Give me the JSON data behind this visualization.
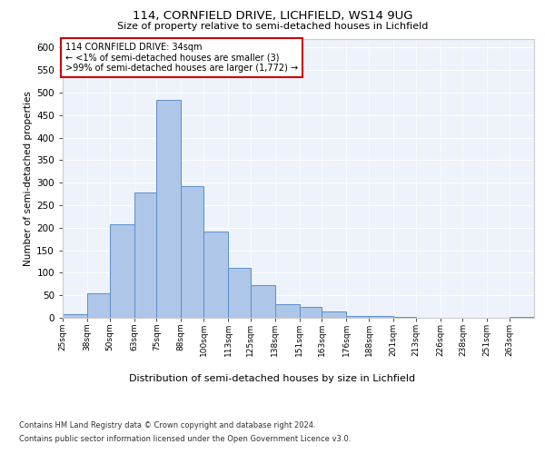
{
  "title1": "114, CORNFIELD DRIVE, LICHFIELD, WS14 9UG",
  "title2": "Size of property relative to semi-detached houses in Lichfield",
  "xlabel": "Distribution of semi-detached houses by size in Lichfield",
  "ylabel": "Number of semi-detached properties",
  "footnote1": "Contains HM Land Registry data © Crown copyright and database right 2024.",
  "footnote2": "Contains public sector information licensed under the Open Government Licence v3.0.",
  "annotation_title": "114 CORNFIELD DRIVE: 34sqm",
  "annotation_line1": "← <1% of semi-detached houses are smaller (3)",
  "annotation_line2": ">99% of semi-detached houses are larger (1,772) →",
  "bar_edges": [
    25,
    38,
    50,
    63,
    75,
    88,
    100,
    113,
    125,
    138,
    151,
    163,
    176,
    188,
    201,
    213,
    226,
    238,
    251,
    263,
    276
  ],
  "bar_heights": [
    8,
    55,
    207,
    278,
    483,
    293,
    192,
    110,
    73,
    30,
    25,
    15,
    5,
    4,
    3,
    0,
    0,
    0,
    0,
    3
  ],
  "bar_color": "#aec6e8",
  "bar_edge_color": "#5b8fc9",
  "background_color": "#eef2fa",
  "grid_color": "#ffffff",
  "ylim": [
    0,
    620
  ],
  "yticks": [
    0,
    50,
    100,
    150,
    200,
    250,
    300,
    350,
    400,
    450,
    500,
    550,
    600
  ],
  "annotation_box_color": "#cc0000"
}
